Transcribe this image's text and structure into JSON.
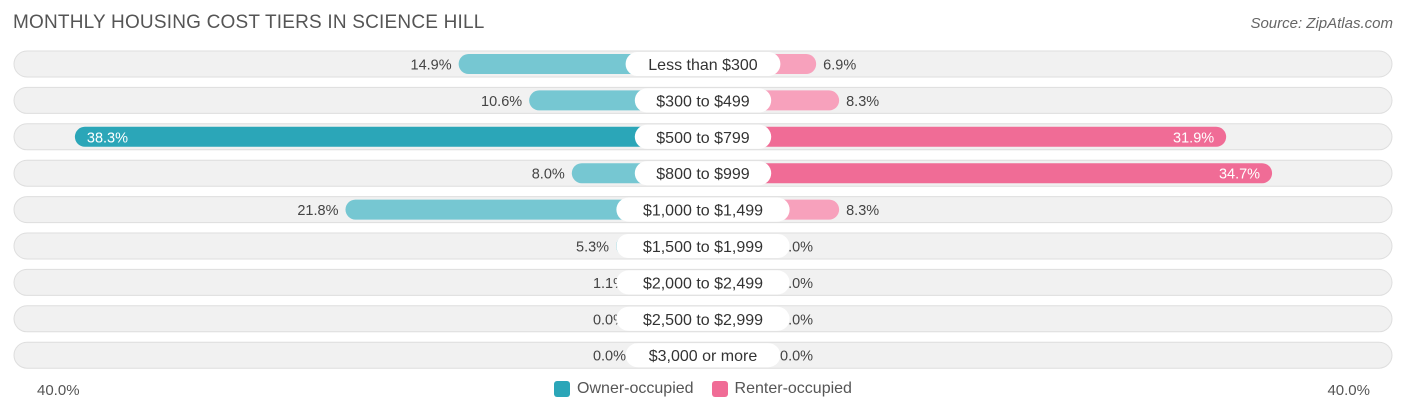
{
  "header": {
    "title": "MONTHLY HOUSING COST TIERS IN SCIENCE HILL",
    "source": "Source: ZipAtlas.com"
  },
  "colors": {
    "owner": "#2ba6b8",
    "owner_light": "#76c7d2",
    "renter": "#f06c96",
    "renter_light": "#f7a1bc",
    "track": "#f1f1f1",
    "track_border": "#dedede"
  },
  "chart_data": {
    "type": "bar",
    "orientation": "horizontal-diverging",
    "title": "MONTHLY HOUSING COST TIERS IN SCIENCE HILL",
    "categories": [
      "Less than $300",
      "$300 to $499",
      "$500 to $799",
      "$800 to $999",
      "$1,000 to $1,499",
      "$1,500 to $1,999",
      "$2,000 to $2,499",
      "$2,500 to $2,999",
      "$3,000 or more"
    ],
    "series": [
      {
        "name": "Owner-occupied",
        "values": [
          14.9,
          10.6,
          38.3,
          8.0,
          21.8,
          5.3,
          1.1,
          0.0,
          0.0
        ],
        "labels": [
          "14.9%",
          "10.6%",
          "38.3%",
          "8.0%",
          "21.8%",
          "5.3%",
          "1.1%",
          "0.0%",
          "0.0%"
        ]
      },
      {
        "name": "Renter-occupied",
        "values": [
          6.9,
          8.3,
          31.9,
          34.7,
          8.3,
          0.0,
          0.0,
          0.0,
          0.0
        ],
        "labels": [
          "6.9%",
          "8.3%",
          "31.9%",
          "34.7%",
          "8.3%",
          "0.0%",
          "0.0%",
          "0.0%",
          "0.0%"
        ]
      }
    ],
    "xlim": [
      -40,
      40
    ],
    "axis_min_label": "40.0%",
    "axis_max_label": "40.0%",
    "legend_position": "bottom-center"
  }
}
